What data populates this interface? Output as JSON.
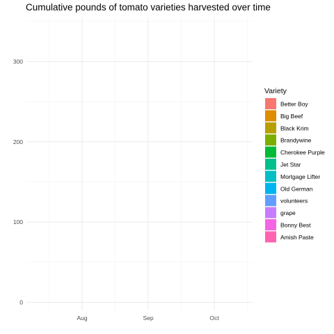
{
  "chart_data": {
    "type": "area",
    "title": "Cumulative pounds of tomato varieties harvested over time",
    "xlabel": "",
    "ylabel": "",
    "x_ticks": [
      "Aug",
      "Sep",
      "Oct"
    ],
    "y_ticks": [
      0,
      100,
      200,
      300
    ],
    "ylim": [
      -10,
      355
    ],
    "grid": true,
    "legend": {
      "title": "Variety",
      "position": "right",
      "entries": [
        {
          "name": "Better Boy",
          "color": "#F8766D"
        },
        {
          "name": "Big Beef",
          "color": "#DE8C00"
        },
        {
          "name": "Black Krim",
          "color": "#B79F00"
        },
        {
          "name": "Brandywine",
          "color": "#7CAE00"
        },
        {
          "name": "Cherokee Purple",
          "color": "#00BA38"
        },
        {
          "name": "Jet Star",
          "color": "#00C08B"
        },
        {
          "name": "Mortgage Lifter",
          "color": "#00BFC4"
        },
        {
          "name": "Old German",
          "color": "#00B4F0"
        },
        {
          "name": "volunteers",
          "color": "#619CFF"
        },
        {
          "name": "grape",
          "color": "#C77CFF"
        },
        {
          "name": "Bonny Best",
          "color": "#F564E3"
        },
        {
          "name": "Amish Paste",
          "color": "#FF64B0"
        }
      ]
    },
    "series": []
  }
}
